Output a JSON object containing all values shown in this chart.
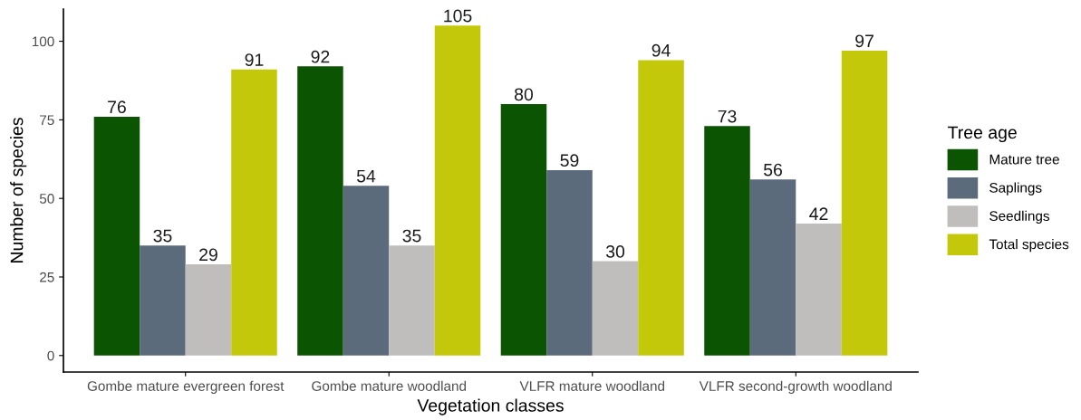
{
  "chart_data": {
    "type": "bar",
    "xlabel": "Vegetation classes",
    "ylabel": "Number of species",
    "legend_title": "Tree age",
    "categories": [
      "Gombe mature evergreen forest",
      "Gombe mature woodland",
      "VLFR mature woodland",
      "VLFR second-growth woodland"
    ],
    "series": [
      {
        "name": "Mature tree",
        "color": "#0b5402",
        "values": [
          76,
          92,
          80,
          73
        ]
      },
      {
        "name": "Saplings",
        "color": "#5b6b7b",
        "values": [
          35,
          54,
          59,
          56
        ]
      },
      {
        "name": "Seedlings",
        "color": "#c0bdbd",
        "values": [
          29,
          35,
          30,
          42
        ]
      },
      {
        "name": "Total species",
        "color": "#c4c80a",
        "values": [
          91,
          105,
          94,
          97
        ]
      }
    ],
    "ylim": [
      -5.25,
      110.25
    ],
    "yticks": [
      0,
      25,
      50,
      75,
      100
    ],
    "grid": false,
    "legend": "right",
    "data_labels": true
  }
}
